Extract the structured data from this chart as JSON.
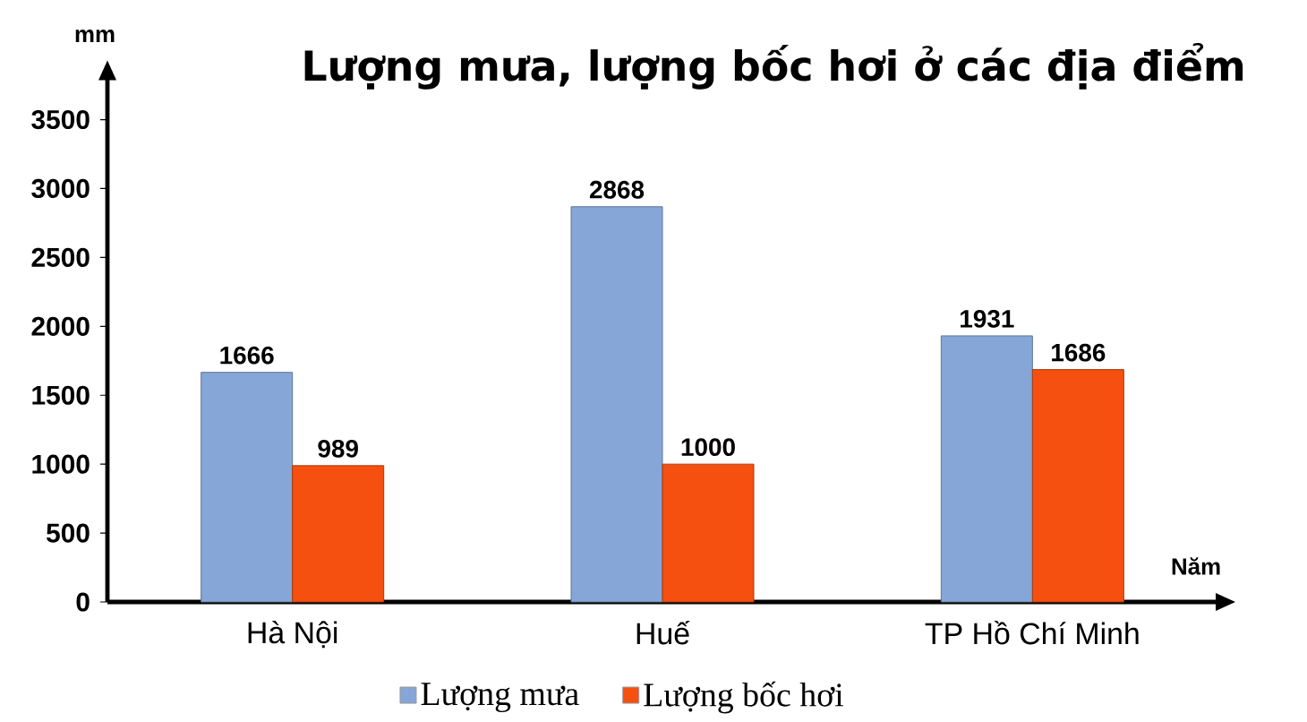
{
  "chart_data": {
    "type": "bar",
    "title": "Lượng mưa, lượng bốc hơi ở các địa điểm",
    "xlabel": "Năm",
    "ylabel": "mm",
    "categories": [
      "Hà Nội",
      "Huế",
      "TP Hồ Chí Minh"
    ],
    "series": [
      {
        "name": "Lượng mưa",
        "color": "#86a6d8",
        "values": [
          1666,
          2868,
          1931
        ]
      },
      {
        "name": "Lượng bốc hơi",
        "color": "#f5500f",
        "values": [
          989,
          1000,
          1686
        ]
      }
    ],
    "ylim": [
      0,
      3800
    ],
    "yticks": [
      0,
      500,
      1000,
      1500,
      2000,
      2500,
      3000,
      3500
    ],
    "data_labels": true,
    "legend": "bottom"
  }
}
